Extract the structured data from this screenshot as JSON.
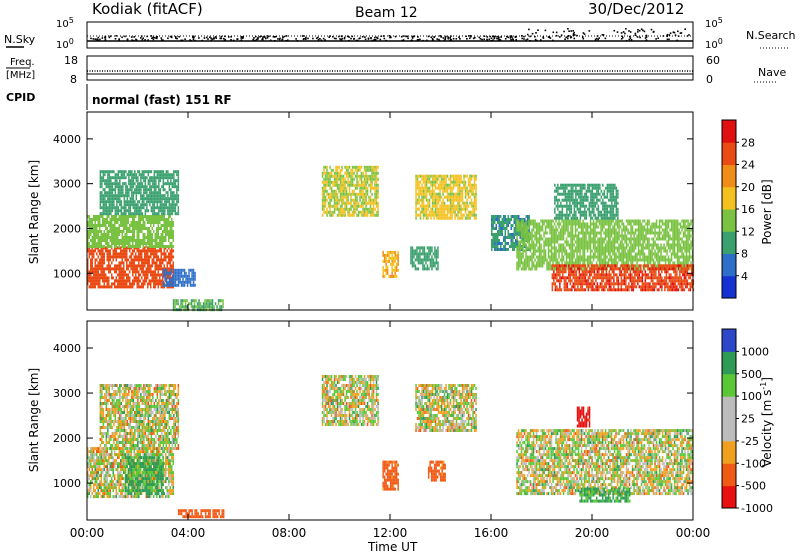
{
  "header": {
    "station": "Kodiak (fitACF)",
    "beam": "Beam 12",
    "date": "30/Dec/2012"
  },
  "noise_panel": {
    "left_label": "N.Sky",
    "right_label": "N.Search",
    "left_ticks": [
      "10^5",
      "10^0"
    ],
    "right_ticks": [
      "10^5",
      "10^0"
    ]
  },
  "freq_panel": {
    "left_label_line1": "Freq.",
    "left_label_line2": "[MHz]",
    "right_label": "Nave",
    "left_ticks": [
      "18",
      "8"
    ],
    "right_ticks": [
      "60",
      "0"
    ]
  },
  "cpid": {
    "label": "CPID",
    "text": "normal (fast) 151 RF"
  },
  "x_axis": {
    "label": "Time UT",
    "ticks": [
      "00:00",
      "04:00",
      "08:00",
      "12:00",
      "16:00",
      "20:00",
      "00:00"
    ],
    "range_hours": [
      0,
      24
    ]
  },
  "colors": {
    "power_scale": [
      "#1432d2",
      "#2d6fc8",
      "#3aa06e",
      "#7ac342",
      "#f4c020",
      "#f08c18",
      "#ea4a14",
      "#e01010"
    ],
    "velocity_scale": [
      "#e81010",
      "#f05a14",
      "#f0a020",
      "#bcbcbc",
      "#bcbcbc",
      "#5ac836",
      "#2e9a56",
      "#2c48c8"
    ]
  },
  "chart_data": [
    {
      "type": "heatmap",
      "title": "",
      "xlabel": "Time UT",
      "ylabel": "Slant Range [km]",
      "xlim": [
        0,
        24
      ],
      "ylim": [
        180,
        4600
      ],
      "y_ticks": [
        "1000",
        "2000",
        "3000",
        "4000"
      ],
      "colorbar": {
        "label": "Power [dB]",
        "ticks": [
          "4",
          "8",
          "12",
          "16",
          "20",
          "24",
          "28"
        ],
        "range": [
          0,
          32
        ]
      },
      "regions": [
        {
          "t0": 0.0,
          "t1": 3.4,
          "r0": 700,
          "r1": 1600,
          "value": 26
        },
        {
          "t0": 0.0,
          "t1": 3.4,
          "r0": 1600,
          "r1": 2300,
          "value": 14
        },
        {
          "t0": 0.5,
          "t1": 3.6,
          "r0": 2300,
          "r1": 3300,
          "value": 10
        },
        {
          "t0": 3.0,
          "t1": 4.3,
          "r0": 700,
          "r1": 1100,
          "value": 6
        },
        {
          "t0": 3.4,
          "t1": 5.4,
          "r0": 200,
          "r1": 420,
          "value": 12
        },
        {
          "t0": 9.3,
          "t1": 11.5,
          "r0": 2300,
          "r1": 3400,
          "value": 16
        },
        {
          "t0": 11.7,
          "t1": 12.3,
          "r0": 900,
          "r1": 1500,
          "value": 20
        },
        {
          "t0": 12.8,
          "t1": 13.9,
          "r0": 1100,
          "r1": 1600,
          "value": 10
        },
        {
          "t0": 13.0,
          "t1": 15.4,
          "r0": 2200,
          "r1": 3200,
          "value": 17
        },
        {
          "t0": 16.0,
          "t1": 17.5,
          "r0": 1500,
          "r1": 2300,
          "value": 9
        },
        {
          "t0": 17.0,
          "t1": 24.0,
          "r0": 1100,
          "r1": 2200,
          "value": 14
        },
        {
          "t0": 18.4,
          "t1": 24.0,
          "r0": 650,
          "r1": 1200,
          "value": 27
        },
        {
          "t0": 18.5,
          "t1": 21.0,
          "r0": 2200,
          "r1": 3000,
          "value": 10
        }
      ]
    },
    {
      "type": "heatmap",
      "title": "",
      "xlabel": "Time UT",
      "ylabel": "Slant Range [km]",
      "xlim": [
        0,
        24
      ],
      "ylim": [
        180,
        4600
      ],
      "y_ticks": [
        "1000",
        "2000",
        "3000",
        "4000"
      ],
      "colorbar": {
        "label": "Velocity [m s^-1]",
        "ticks": [
          "1000",
          "500",
          "100",
          "25",
          "-25",
          "-100",
          "-500",
          "-1000"
        ],
        "range": [
          -1000,
          1000
        ]
      },
      "regions": [
        {
          "t0": 0.0,
          "t1": 3.4,
          "r0": 700,
          "r1": 1800,
          "value": 0
        },
        {
          "t0": 1.5,
          "t1": 3.0,
          "r0": 800,
          "r1": 1600,
          "value": 150
        },
        {
          "t0": 0.5,
          "t1": 3.6,
          "r0": 1800,
          "r1": 3200,
          "value": 0
        },
        {
          "t0": 3.6,
          "t1": 5.4,
          "r0": 250,
          "r1": 420,
          "value": -300
        },
        {
          "t0": 9.3,
          "t1": 11.5,
          "r0": 2300,
          "r1": 3400,
          "value": 0
        },
        {
          "t0": 11.7,
          "t1": 12.3,
          "r0": 900,
          "r1": 1500,
          "value": -200
        },
        {
          "t0": 13.5,
          "t1": 14.2,
          "r0": 1100,
          "r1": 1500,
          "value": -200
        },
        {
          "t0": 13.0,
          "t1": 15.4,
          "r0": 2200,
          "r1": 3200,
          "value": 0
        },
        {
          "t0": 17.0,
          "t1": 24.0,
          "r0": 800,
          "r1": 2200,
          "value": 0
        },
        {
          "t0": 19.5,
          "t1": 21.5,
          "r0": 600,
          "r1": 900,
          "value": 150
        },
        {
          "t0": 19.4,
          "t1": 19.9,
          "r0": 2300,
          "r1": 2700,
          "value": -600
        }
      ]
    }
  ]
}
